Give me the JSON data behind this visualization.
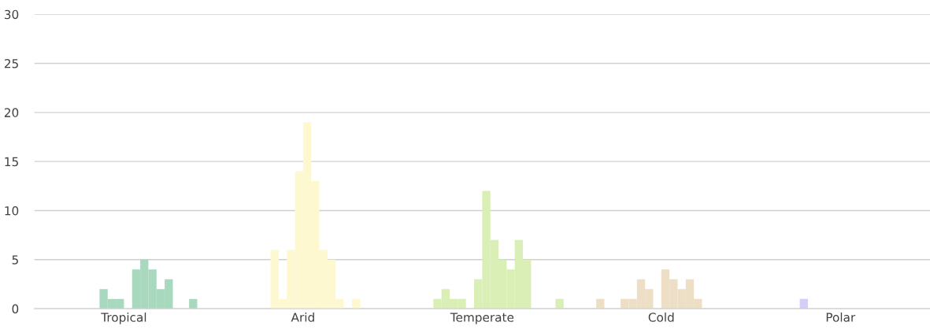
{
  "chart_data": {
    "type": "bar",
    "categories": [
      "Tropical",
      "Arid",
      "Temperate",
      "Cold",
      "Polar"
    ],
    "series": [
      {
        "colors": [
          "#a8d8bd",
          "#fdf8d0",
          "#d9efb5",
          "#eddfc6",
          "#d3cdf8"
        ],
        "values": [
          0,
          0,
          0,
          0,
          0
        ]
      },
      {
        "colors": [
          "#a8d8bd",
          "#fdf8d0",
          "#d9efb5",
          "#eddfc6",
          "#d3cdf8"
        ],
        "values": [
          0,
          0,
          0,
          0,
          0
        ]
      },
      {
        "colors": [
          "#a8d8bd",
          "#fdf8d0",
          "#d9efb5",
          "#eddfc6",
          "#d3cdf8"
        ],
        "values": [
          0,
          0,
          0,
          0,
          0
        ]
      },
      {
        "colors": [
          "#a8d8bd",
          "#fdf8d0",
          "#d9efb5",
          "#eddfc6",
          "#d3cdf8"
        ],
        "values": [
          0,
          0,
          0,
          1,
          0
        ]
      },
      {
        "colors": [
          "#a8d8bd",
          "#fdf8d0",
          "#d9efb5",
          "#eddfc6",
          "#d3cdf8"
        ],
        "values": [
          0,
          0,
          0,
          0,
          0
        ]
      },
      {
        "colors": [
          "#a8d8bd",
          "#fdf8d0",
          "#d9efb5",
          "#eddfc6",
          "#d3cdf8"
        ],
        "values": [
          0,
          0,
          1,
          0,
          0
        ]
      },
      {
        "colors": [
          "#a8d8bd",
          "#fdf8d0",
          "#d9efb5",
          "#eddfc6",
          "#d3cdf8"
        ],
        "values": [
          0,
          0,
          2,
          1,
          1
        ]
      },
      {
        "colors": [
          "#a8d8bd",
          "#fdf8d0",
          "#d9efb5",
          "#eddfc6",
          "#d3cdf8"
        ],
        "values": [
          0,
          6,
          1,
          1,
          0
        ]
      },
      {
        "colors": [
          "#a8d8bd",
          "#fdf8d0",
          "#d9efb5",
          "#eddfc6",
          "#d3cdf8"
        ],
        "values": [
          2,
          1,
          1,
          3,
          0
        ]
      },
      {
        "colors": [
          "#a8d8bd",
          "#fdf8d0",
          "#d9efb5",
          "#eddfc6",
          "#d3cdf8"
        ],
        "values": [
          1,
          6,
          0,
          2,
          0
        ]
      },
      {
        "colors": [
          "#a8d8bd",
          "#fdf8d0",
          "#d9efb5",
          "#eddfc6",
          "#d3cdf8"
        ],
        "values": [
          1,
          14,
          3,
          0,
          0
        ]
      },
      {
        "colors": [
          "#a8d8bd",
          "#fdf8d0",
          "#d9efb5",
          "#eddfc6",
          "#d3cdf8"
        ],
        "values": [
          0,
          19,
          12,
          4,
          0
        ]
      },
      {
        "colors": [
          "#a8d8bd",
          "#fdf8d0",
          "#d9efb5",
          "#eddfc6",
          "#d3cdf8"
        ],
        "values": [
          4,
          13,
          7,
          3,
          0
        ]
      },
      {
        "colors": [
          "#a8d8bd",
          "#fdf8d0",
          "#d9efb5",
          "#eddfc6",
          "#d3cdf8"
        ],
        "values": [
          5,
          6,
          5,
          2,
          0
        ]
      },
      {
        "colors": [
          "#a8d8bd",
          "#fdf8d0",
          "#d9efb5",
          "#eddfc6",
          "#d3cdf8"
        ],
        "values": [
          4,
          5,
          4,
          3,
          0
        ]
      },
      {
        "colors": [
          "#a8d8bd",
          "#fdf8d0",
          "#d9efb5",
          "#eddfc6",
          "#d3cdf8"
        ],
        "values": [
          2,
          1,
          7,
          1,
          0
        ]
      },
      {
        "colors": [
          "#a8d8bd",
          "#fdf8d0",
          "#d9efb5",
          "#eddfc6",
          "#d3cdf8"
        ],
        "values": [
          3,
          0,
          5,
          0,
          0
        ]
      },
      {
        "colors": [
          "#a8d8bd",
          "#fdf8d0",
          "#d9efb5",
          "#eddfc6",
          "#d3cdf8"
        ],
        "values": [
          0,
          1,
          0,
          0,
          0
        ]
      },
      {
        "colors": [
          "#a8d8bd",
          "#fdf8d0",
          "#d9efb5",
          "#eddfc6",
          "#d3cdf8"
        ],
        "values": [
          0,
          0,
          0,
          0,
          0
        ]
      },
      {
        "colors": [
          "#a8d8bd",
          "#fdf8d0",
          "#d9efb5",
          "#eddfc6",
          "#d3cdf8"
        ],
        "values": [
          1,
          0,
          0,
          0,
          0
        ]
      },
      {
        "colors": [
          "#a8d8bd",
          "#fdf8d0",
          "#d9efb5",
          "#eddfc6",
          "#d3cdf8"
        ],
        "values": [
          0,
          0,
          1,
          0,
          0
        ]
      },
      {
        "colors": [
          "#a8d8bd",
          "#fdf8d0",
          "#d9efb5",
          "#eddfc6",
          "#d3cdf8"
        ],
        "values": [
          0,
          0,
          0,
          0,
          0
        ]
      }
    ],
    "ylim": [
      0,
      30
    ],
    "yticks": [
      0,
      5,
      10,
      15,
      20,
      25,
      30
    ],
    "grid": "y",
    "legend": false
  }
}
